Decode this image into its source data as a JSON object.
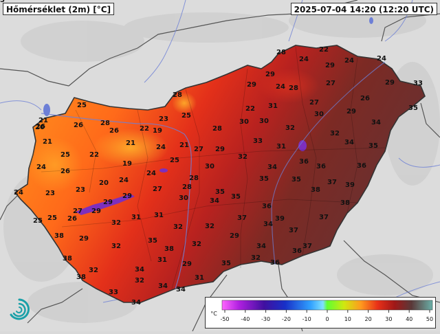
{
  "header": {
    "title": "Hőmérséklet (2m) [°C]",
    "timestamp": "2025-07-04 14:20 (12:20 UTC)"
  },
  "legend": {
    "unit": "°C",
    "ticks": [
      "-50",
      "-40",
      "-30",
      "-20",
      "-10",
      "0",
      "10",
      "20",
      "30",
      "40",
      "50"
    ]
  },
  "map": {
    "logo_icon": "met-service-spiral-logo",
    "labels": [
      {
        "v": "22"
      },
      {
        "v": "28"
      },
      {
        "v": "24"
      },
      {
        "v": "24"
      },
      {
        "v": "24"
      },
      {
        "v": "29"
      },
      {
        "v": "33"
      },
      {
        "v": "29"
      },
      {
        "v": "29"
      },
      {
        "v": "24"
      },
      {
        "v": "28"
      },
      {
        "v": "27"
      },
      {
        "v": "28"
      },
      {
        "v": "29"
      },
      {
        "v": "27"
      },
      {
        "v": "26"
      },
      {
        "v": "25"
      },
      {
        "v": "22"
      },
      {
        "v": "31"
      },
      {
        "v": "29"
      },
      {
        "v": "35"
      },
      {
        "v": "23"
      },
      {
        "v": "30"
      },
      {
        "v": "30"
      },
      {
        "v": "30"
      },
      {
        "v": "21"
      },
      {
        "v": "28"
      },
      {
        "v": "26"
      },
      {
        "v": "26"
      },
      {
        "v": "22"
      },
      {
        "v": "19"
      },
      {
        "v": "25"
      },
      {
        "v": "28"
      },
      {
        "v": "32"
      },
      {
        "v": "32"
      },
      {
        "v": "34"
      },
      {
        "v": "26"
      },
      {
        "v": "20"
      },
      {
        "v": "21"
      },
      {
        "v": "33"
      },
      {
        "v": "34"
      },
      {
        "v": "35"
      },
      {
        "v": "21"
      },
      {
        "v": "24"
      },
      {
        "v": "21"
      },
      {
        "v": "27"
      },
      {
        "v": "29"
      },
      {
        "v": "31"
      },
      {
        "v": "25"
      },
      {
        "v": "22"
      },
      {
        "v": "32"
      },
      {
        "v": "36"
      },
      {
        "v": "36"
      },
      {
        "v": "36"
      },
      {
        "v": "24"
      },
      {
        "v": "19"
      },
      {
        "v": "25"
      },
      {
        "v": "30"
      },
      {
        "v": "34"
      },
      {
        "v": "26"
      },
      {
        "v": "24"
      },
      {
        "v": "28"
      },
      {
        "v": "35"
      },
      {
        "v": "35"
      },
      {
        "v": "37"
      },
      {
        "v": "39"
      },
      {
        "v": "24"
      },
      {
        "v": "23"
      },
      {
        "v": "23"
      },
      {
        "v": "20"
      },
      {
        "v": "24"
      },
      {
        "v": "27"
      },
      {
        "v": "28"
      },
      {
        "v": "35"
      },
      {
        "v": "38"
      },
      {
        "v": "29"
      },
      {
        "v": "30"
      },
      {
        "v": "34"
      },
      {
        "v": "35"
      },
      {
        "v": "38"
      },
      {
        "v": "27"
      },
      {
        "v": "29"
      },
      {
        "v": "29"
      },
      {
        "v": "36"
      },
      {
        "v": "25"
      },
      {
        "v": "25"
      },
      {
        "v": "26"
      },
      {
        "v": "31"
      },
      {
        "v": "31"
      },
      {
        "v": "32"
      },
      {
        "v": "37"
      },
      {
        "v": "39"
      },
      {
        "v": "37"
      },
      {
        "v": "32"
      },
      {
        "v": "32"
      },
      {
        "v": "34"
      },
      {
        "v": "37"
      },
      {
        "v": "38"
      },
      {
        "v": "29"
      },
      {
        "v": "29"
      },
      {
        "v": "35"
      },
      {
        "v": "32"
      },
      {
        "v": "32"
      },
      {
        "v": "34"
      },
      {
        "v": "37"
      },
      {
        "v": "36"
      },
      {
        "v": "38"
      },
      {
        "v": "38"
      },
      {
        "v": "32"
      },
      {
        "v": "29"
      },
      {
        "v": "31"
      },
      {
        "v": "34"
      },
      {
        "v": "32"
      },
      {
        "v": "36"
      },
      {
        "v": "38"
      },
      {
        "v": "32"
      },
      {
        "v": "31"
      },
      {
        "v": "35"
      },
      {
        "v": "33"
      },
      {
        "v": "34"
      },
      {
        "v": "34"
      },
      {
        "v": "34"
      },
      {
        "v": "35"
      }
    ]
  },
  "colors": {
    "land_bg": "#dcdcdc",
    "hungary_cool": "#ff8c1a",
    "hungary_mid": "#e8361a",
    "hungary_hot": "#7a2a22",
    "lake": "#7d2fbd",
    "border": "#444444",
    "river": "#6d7fd6"
  }
}
